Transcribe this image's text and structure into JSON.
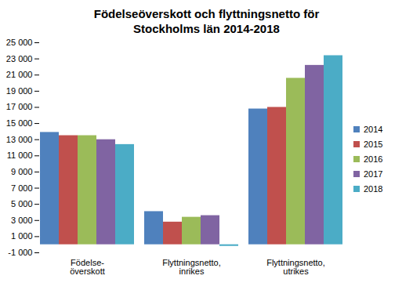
{
  "chart_data": {
    "type": "bar",
    "title": "Födelseöverskott och flyttningsnetto för\nStockholms län 2014-2018",
    "categories": [
      "Födelse-\növerskott",
      "Flyttningsnetto,\ninrikes",
      "Flyttningsnetto,\nutrikes"
    ],
    "series": [
      {
        "name": "2014",
        "color": "#4F81BD",
        "values": [
          13900,
          4100,
          16800
        ]
      },
      {
        "name": "2015",
        "color": "#C0504D",
        "values": [
          13500,
          2800,
          17000
        ]
      },
      {
        "name": "2016",
        "color": "#9BBB59",
        "values": [
          13500,
          3400,
          20600
        ]
      },
      {
        "name": "2017",
        "color": "#8064A2",
        "values": [
          13000,
          3600,
          22200
        ]
      },
      {
        "name": "2018",
        "color": "#4BACC6",
        "values": [
          12400,
          -200,
          23400
        ]
      }
    ],
    "ylim": [
      -1000,
      25000
    ],
    "yticks": [
      {
        "value": -1000,
        "label": "-1 000"
      },
      {
        "value": 1000,
        "label": "1 000"
      },
      {
        "value": 3000,
        "label": "3 000"
      },
      {
        "value": 5000,
        "label": "5 000"
      },
      {
        "value": 7000,
        "label": "7 000"
      },
      {
        "value": 9000,
        "label": "9 000"
      },
      {
        "value": 11000,
        "label": "11 000"
      },
      {
        "value": 13000,
        "label": "13 000"
      },
      {
        "value": 15000,
        "label": "15 000"
      },
      {
        "value": 17000,
        "label": "17 000"
      },
      {
        "value": 19000,
        "label": "19 000"
      },
      {
        "value": 21000,
        "label": "21 000"
      },
      {
        "value": 23000,
        "label": "23 000"
      },
      {
        "value": 25000,
        "label": "25 000"
      }
    ],
    "grid": false,
    "legend": "right"
  }
}
